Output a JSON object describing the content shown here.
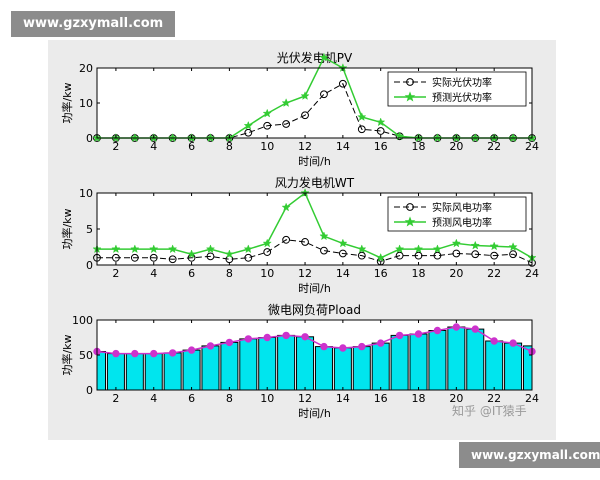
{
  "watermarks": {
    "top": "www.gzxymall.com",
    "bottom": "www.gzxymall.com"
  },
  "credit": "知乎 @IT猿手",
  "colors": {
    "figure_bg": "#ebebeb",
    "actual": "#000000",
    "forecast": "#33cc33",
    "load_bar": "#00e5ee",
    "load_line": "#cc33cc"
  },
  "chart_data": [
    {
      "type": "line",
      "title": "光伏发电机PV",
      "xlabel": "时间/h",
      "ylabel": "功率/kw",
      "xlim": [
        1,
        24
      ],
      "ylim": [
        0,
        20
      ],
      "yticks": [
        0,
        10,
        20
      ],
      "xticks": [
        2,
        4,
        6,
        8,
        10,
        12,
        14,
        16,
        18,
        20,
        22,
        24
      ],
      "legend_position": "top-right",
      "x": [
        1,
        2,
        3,
        4,
        5,
        6,
        7,
        8,
        9,
        10,
        11,
        12,
        13,
        14,
        15,
        16,
        17,
        18,
        19,
        20,
        21,
        22,
        23,
        24
      ],
      "series": [
        {
          "name": "实际光伏功率",
          "style": "dashed-circle",
          "values": [
            0,
            0,
            0,
            0,
            0,
            0,
            0,
            0,
            1.5,
            3.5,
            4,
            6.5,
            12.5,
            15.5,
            2.5,
            2,
            0.5,
            0,
            0,
            0,
            0,
            0,
            0,
            0
          ]
        },
        {
          "name": "预测光伏功率",
          "style": "solid-star",
          "values": [
            0,
            0,
            0,
            0,
            0,
            0,
            0,
            0,
            3.5,
            7,
            10,
            12,
            23,
            20,
            6,
            4.5,
            0.5,
            0,
            0,
            0,
            0,
            0,
            0,
            0
          ]
        }
      ]
    },
    {
      "type": "line",
      "title": "风力发电机WT",
      "xlabel": "时间/h",
      "ylabel": "功率/kw",
      "xlim": [
        1,
        24
      ],
      "ylim": [
        0,
        10
      ],
      "yticks": [
        0,
        5,
        10
      ],
      "xticks": [
        2,
        4,
        6,
        8,
        10,
        12,
        14,
        16,
        18,
        20,
        22,
        24
      ],
      "legend_position": "top-right",
      "x": [
        1,
        2,
        3,
        4,
        5,
        6,
        7,
        8,
        9,
        10,
        11,
        12,
        13,
        14,
        15,
        16,
        17,
        18,
        19,
        20,
        21,
        22,
        23,
        24
      ],
      "series": [
        {
          "name": "实际风电功率",
          "style": "dashed-circle",
          "values": [
            1,
            1,
            1,
            1,
            0.8,
            1,
            1.2,
            0.8,
            1,
            1.8,
            3.5,
            3.2,
            2,
            1.6,
            1.3,
            0.5,
            1.3,
            1.3,
            1.3,
            1.6,
            1.5,
            1.3,
            1.5,
            0.3
          ]
        },
        {
          "name": "预测风电功率",
          "style": "solid-star",
          "values": [
            2.2,
            2.2,
            2.2,
            2.2,
            2.2,
            1.5,
            2.2,
            1.5,
            2.2,
            3,
            8,
            10,
            4,
            3,
            2.2,
            1,
            2.2,
            2.2,
            2.2,
            3,
            2.7,
            2.6,
            2.5,
            1
          ]
        }
      ]
    },
    {
      "type": "bar",
      "title": "微电网负荷Pload",
      "xlabel": "时间/h",
      "ylabel": "功率/kw",
      "xlim": [
        1,
        24
      ],
      "ylim": [
        0,
        100
      ],
      "yticks": [
        0,
        50,
        100
      ],
      "xticks": [
        2,
        4,
        6,
        8,
        10,
        12,
        14,
        16,
        18,
        20,
        22,
        24
      ],
      "x": [
        1,
        2,
        3,
        4,
        5,
        6,
        7,
        8,
        9,
        10,
        11,
        12,
        13,
        14,
        15,
        16,
        17,
        18,
        19,
        20,
        21,
        22,
        23,
        24
      ],
      "values": [
        55,
        52,
        52,
        52,
        53,
        57,
        63,
        68,
        73,
        75,
        78,
        76,
        62,
        60,
        62,
        67,
        78,
        80,
        85,
        90,
        87,
        70,
        67,
        63
      ],
      "overlay_values": [
        55,
        52,
        52,
        52,
        53,
        57,
        63,
        68,
        73,
        75,
        78,
        76,
        62,
        60,
        62,
        67,
        78,
        80,
        85,
        90,
        87,
        70,
        67,
        55
      ]
    }
  ]
}
